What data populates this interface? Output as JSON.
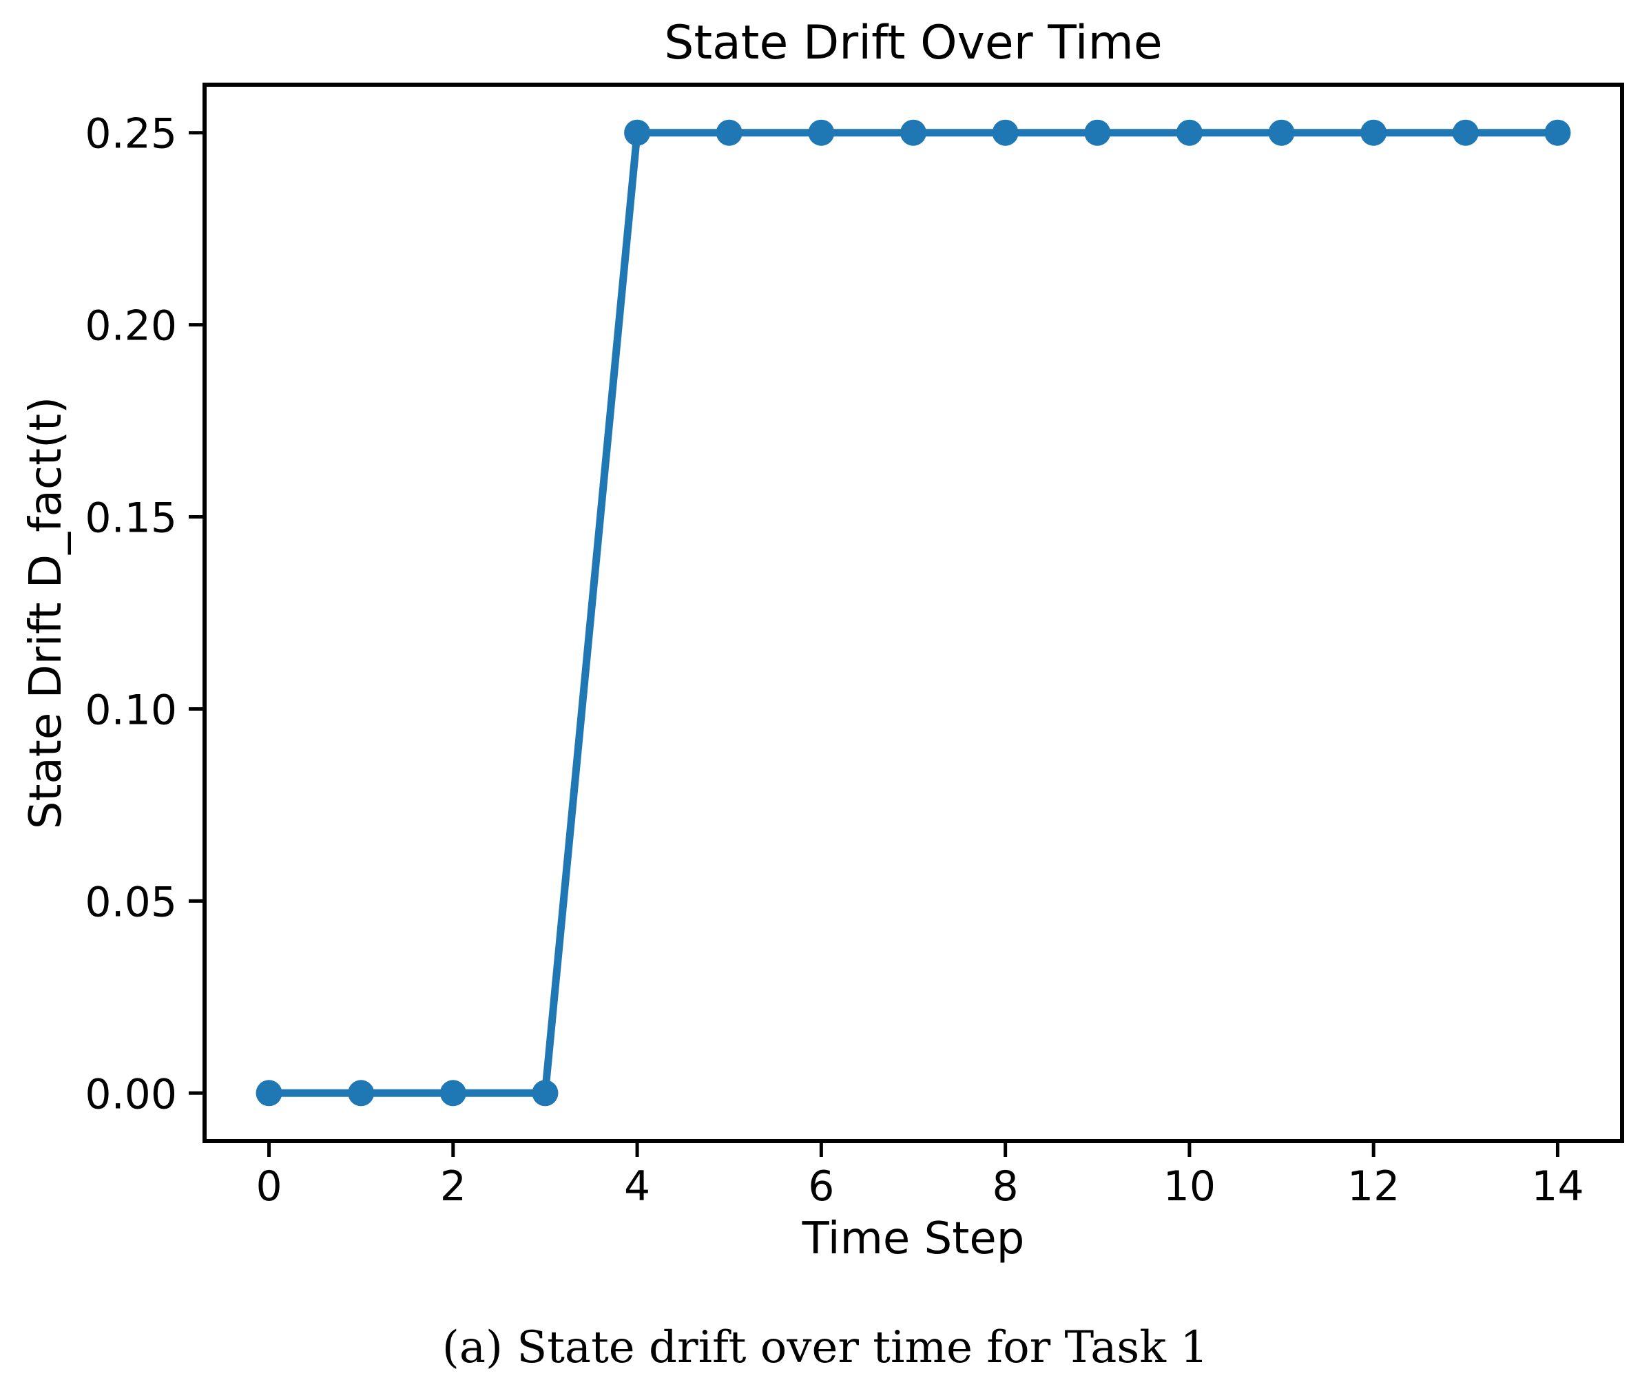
{
  "chart_data": {
    "type": "line",
    "title": "State Drift Over Time",
    "xlabel": "Time Step",
    "ylabel": "State Drift D_fact(t)",
    "x": [
      0,
      1,
      2,
      3,
      4,
      5,
      6,
      7,
      8,
      9,
      10,
      11,
      12,
      13,
      14
    ],
    "series": [
      {
        "name": "State Drift D_fact(t)",
        "values": [
          0.0,
          0.0,
          0.0,
          0.0,
          0.25,
          0.25,
          0.25,
          0.25,
          0.25,
          0.25,
          0.25,
          0.25,
          0.25,
          0.25,
          0.25
        ]
      }
    ],
    "xticks": {
      "values": [
        0,
        2,
        4,
        6,
        8,
        10,
        12,
        14
      ],
      "labels": [
        "0",
        "2",
        "4",
        "6",
        "8",
        "10",
        "12",
        "14"
      ]
    },
    "yticks": {
      "values": [
        0.0,
        0.05,
        0.1,
        0.15,
        0.2,
        0.25
      ],
      "labels": [
        "0.00",
        "0.05",
        "0.10",
        "0.15",
        "0.20",
        "0.25"
      ]
    },
    "xlim": [
      -0.7,
      14.7
    ],
    "ylim": [
      -0.0125,
      0.2625
    ],
    "grid": false,
    "legend": "none",
    "marker": "circle",
    "line_color": "#1f77b4",
    "axis_color": "#000000",
    "background_color": "#ffffff"
  },
  "caption": {
    "text": "(a) State drift over time for Task 1"
  }
}
